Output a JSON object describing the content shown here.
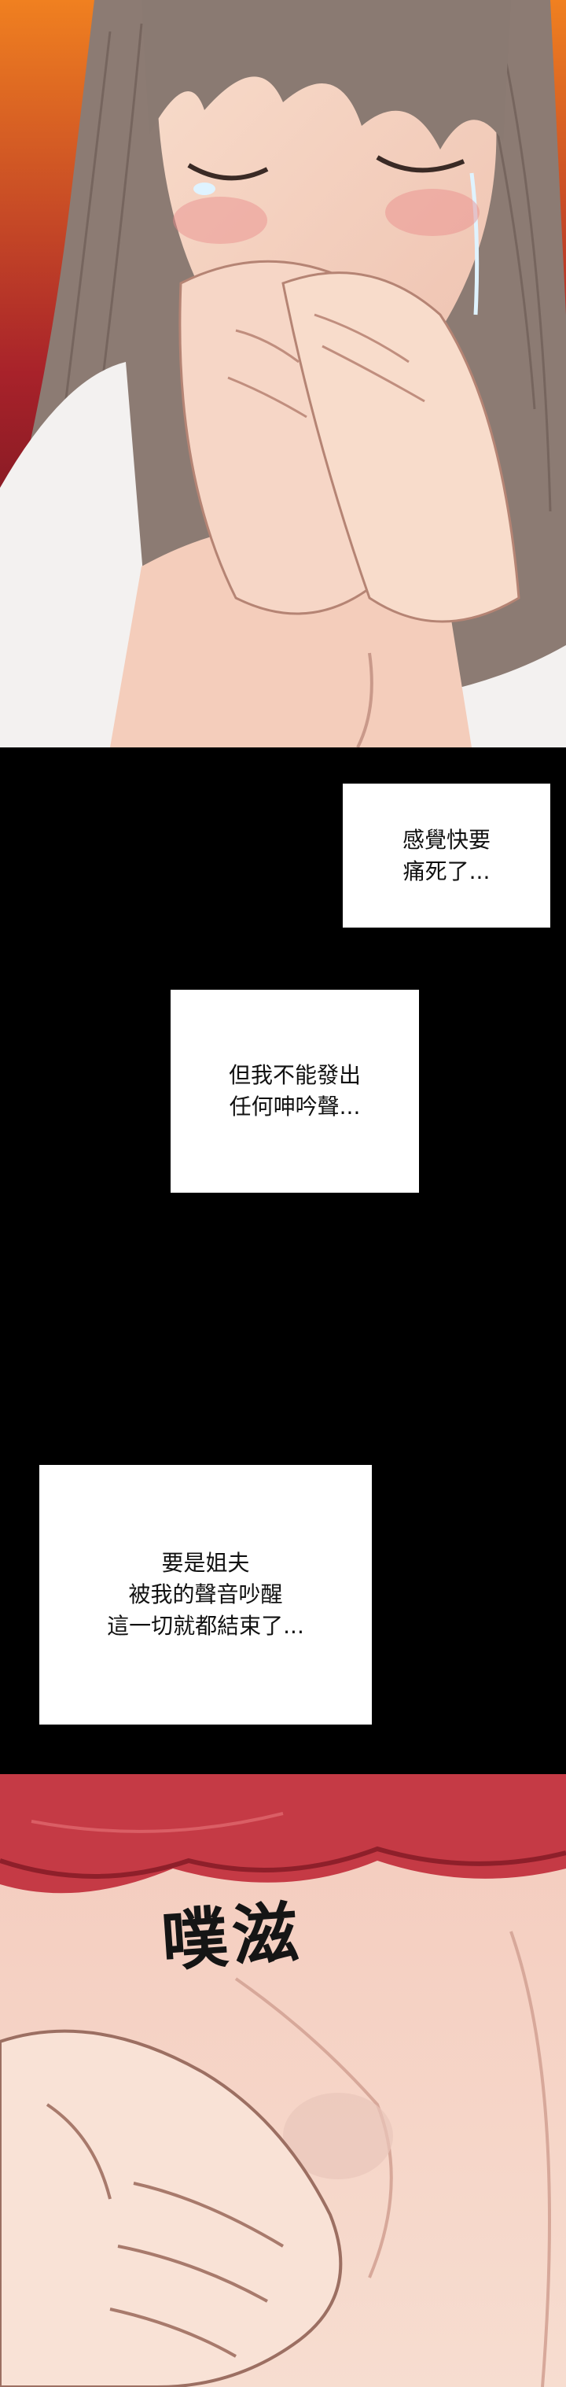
{
  "captions": [
    {
      "lines": [
        "感覺快要",
        "痛死了..."
      ]
    },
    {
      "lines": [
        "但我不能發出",
        "任何呻吟聲..."
      ]
    },
    {
      "lines": [
        "要是姐夫",
        "被我的聲音吵醒",
        "這一切就都結束了..."
      ]
    }
  ],
  "sound_effect": "噗滋",
  "colors": {
    "background": "#000000",
    "caption_bg": "#ffffff",
    "caption_text": "#111111",
    "skin": "#f6d7c8",
    "hair": "#8a7a72",
    "shirt_red": "#c53a45"
  }
}
